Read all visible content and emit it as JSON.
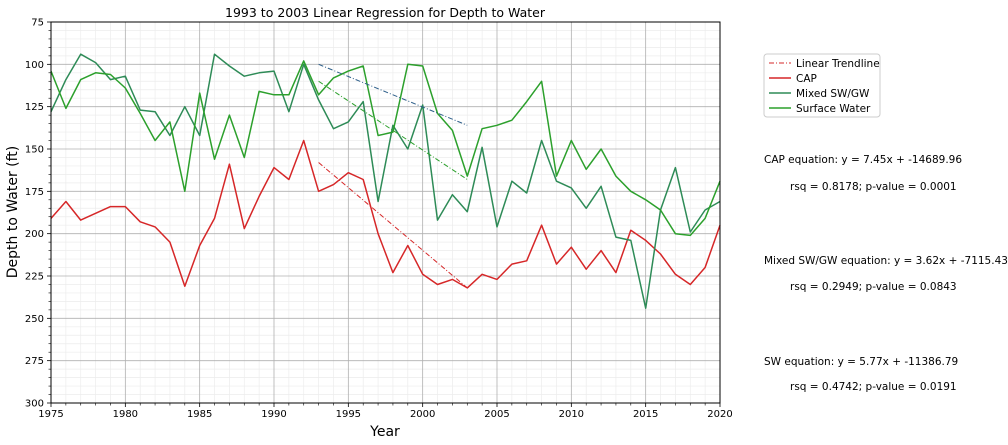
{
  "chart_data": {
    "type": "line",
    "title": "1993 to 2003 Linear Regression for Depth to Water",
    "xlabel": "Year",
    "ylabel": "Depth to Water (ft)",
    "xlim": [
      1975,
      2020
    ],
    "ylim": [
      75,
      300
    ],
    "y_inverted": true,
    "grid": true,
    "minor_grid": true,
    "legend_position": "right, upper",
    "x_ticks": [
      "1975",
      "1980",
      "1985",
      "1990",
      "1995",
      "2000",
      "2005",
      "2010",
      "2015",
      "2020"
    ],
    "y_ticks": [
      "75",
      "100",
      "125",
      "150",
      "175",
      "200",
      "225",
      "250",
      "275",
      "300"
    ],
    "legend": [
      {
        "label": "Linear Trendline",
        "color": "#d62728",
        "style": "dashdot"
      },
      {
        "label": "CAP",
        "color": "#d62728",
        "style": "solid"
      },
      {
        "label": "Mixed SW/GW",
        "color": "#2e8b57",
        "style": "solid"
      },
      {
        "label": "Surface Water",
        "color": "#2ca02c",
        "style": "solid"
      }
    ],
    "series": [
      {
        "name": "CAP",
        "color": "#d62728",
        "x": [
          1975,
          1976,
          1977,
          1978,
          1979,
          1980,
          1981,
          1982,
          1983,
          1984,
          1985,
          1986,
          1987,
          1988,
          1989,
          1990,
          1991,
          1992,
          1993,
          1994,
          1995,
          1996,
          1997,
          1998,
          1999,
          2000,
          2001,
          2002,
          2003,
          2004,
          2005,
          2006,
          2007,
          2008,
          2009,
          2010,
          2011,
          2012,
          2013,
          2014,
          2015,
          2016,
          2017,
          2018,
          2019,
          2020
        ],
        "y": [
          191,
          181,
          192,
          188,
          184,
          184,
          193,
          196,
          205,
          231,
          207,
          191,
          159,
          197,
          178,
          161,
          168,
          145,
          175,
          171,
          164,
          168,
          200,
          223,
          207,
          224,
          230,
          227,
          232,
          224,
          227,
          218,
          216,
          195,
          218,
          208,
          221,
          210,
          223,
          198,
          204,
          212,
          224,
          230,
          220,
          195
        ]
      },
      {
        "name": "Mixed SW/GW",
        "color": "#2e8b57",
        "x": [
          1975,
          1976,
          1977,
          1978,
          1979,
          1980,
          1981,
          1982,
          1983,
          1984,
          1985,
          1986,
          1987,
          1988,
          1989,
          1990,
          1991,
          1992,
          1993,
          1994,
          1995,
          1996,
          1997,
          1998,
          1999,
          2000,
          2001,
          2002,
          2003,
          2004,
          2005,
          2006,
          2007,
          2008,
          2009,
          2010,
          2011,
          2012,
          2013,
          2014,
          2015,
          2016,
          2017,
          2018,
          2019,
          2020
        ],
        "y": [
          128,
          109,
          94,
          99,
          109,
          107,
          127,
          128,
          142,
          125,
          142,
          94,
          101,
          107,
          105,
          104,
          128,
          100,
          121,
          138,
          134,
          122,
          181,
          136,
          150,
          124,
          192,
          177,
          187,
          149,
          196,
          169,
          176,
          145,
          169,
          173,
          185,
          172,
          202,
          204,
          244,
          186,
          161,
          199,
          186,
          181
        ]
      },
      {
        "name": "Surface Water",
        "color": "#2ca02c",
        "x": [
          1975,
          1976,
          1977,
          1978,
          1979,
          1980,
          1981,
          1982,
          1983,
          1984,
          1985,
          1986,
          1987,
          1988,
          1989,
          1990,
          1991,
          1992,
          1993,
          1994,
          1995,
          1996,
          1997,
          1998,
          1999,
          2000,
          2001,
          2002,
          2003,
          2004,
          2005,
          2006,
          2007,
          2008,
          2009,
          2010,
          2011,
          2012,
          2013,
          2014,
          2015,
          2016,
          2017,
          2018,
          2019,
          2020
        ],
        "y": [
          104,
          126,
          109,
          105,
          106,
          114,
          129,
          145,
          134,
          175,
          117,
          156,
          130,
          155,
          116,
          118,
          118,
          98,
          118,
          108,
          104,
          101,
          142,
          140,
          100,
          101,
          129,
          139,
          166,
          138,
          136,
          133,
          122,
          110,
          166,
          145,
          162,
          150,
          166,
          175,
          180,
          186,
          200,
          201,
          191,
          169
        ]
      }
    ],
    "trendlines": [
      {
        "name": "CAP trend",
        "color": "#d62728",
        "x": [
          1993,
          2003
        ],
        "y": [
          158,
          232
        ]
      },
      {
        "name": "Mixed SW/GW trend",
        "color": "#2e5f8a",
        "x": [
          1993,
          2003
        ],
        "y": [
          100,
          136
        ]
      },
      {
        "name": "SW trend",
        "color": "#2ca02c",
        "x": [
          1993,
          2003
        ],
        "y": [
          110,
          168
        ]
      }
    ],
    "annotations": [
      {
        "eq": "CAP equation: y = 7.45x + -14689.96",
        "stats": "rsq = 0.8178; p-value = 0.0001"
      },
      {
        "eq": "Mixed SW/GW equation: y = 3.62x + -7115.43",
        "stats": "rsq = 0.2949; p-value = 0.0843"
      },
      {
        "eq": "SW equation: y = 5.77x + -11386.79",
        "stats": "rsq = 0.4742; p-value = 0.0191"
      }
    ]
  }
}
